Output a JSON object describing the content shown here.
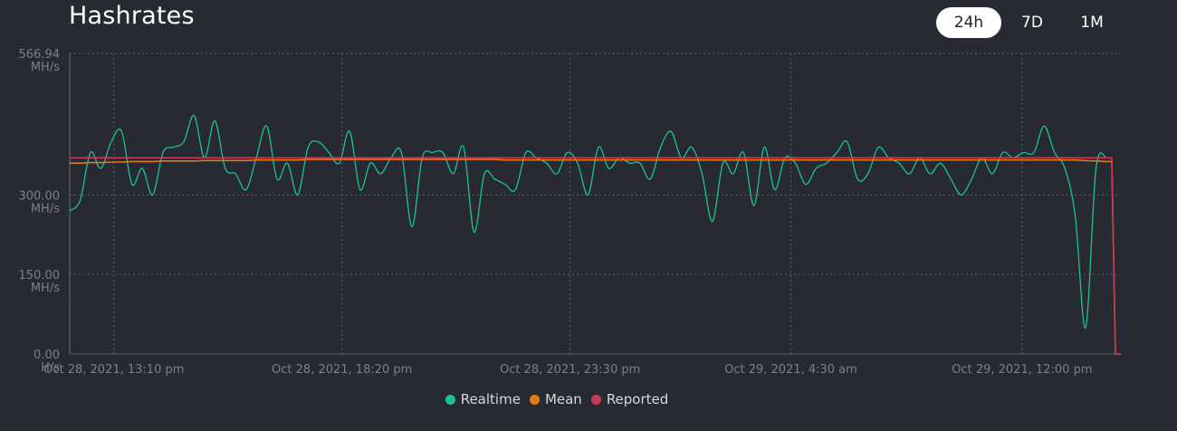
{
  "header": {
    "title": "Hashrates",
    "tabs": [
      {
        "label": "24h",
        "active": true
      },
      {
        "label": "7D",
        "active": false
      },
      {
        "label": "1M",
        "active": false
      }
    ]
  },
  "chart_data": {
    "type": "line",
    "title": "Hashrates",
    "grid": true,
    "legend_position": "bottom",
    "ylim": [
      0,
      566.94
    ],
    "y_ticks": [
      {
        "value": 566.94,
        "label": "566.94",
        "unit": "MH/s"
      },
      {
        "value": 300,
        "label": "300.00",
        "unit": "MH/s"
      },
      {
        "value": 150,
        "label": "150.00",
        "unit": "MH/s"
      },
      {
        "value": 0,
        "label": "0.00",
        "unit": "H/s"
      }
    ],
    "xlim": [
      0,
      1
    ],
    "x_ticks": [
      {
        "pos": 0.042,
        "label": "Oct 28, 2021, 13:10 pm"
      },
      {
        "pos": 0.259,
        "label": "Oct 28, 2021, 18:20 pm"
      },
      {
        "pos": 0.476,
        "label": "Oct 28, 2021, 23:30 pm"
      },
      {
        "pos": 0.686,
        "label": "Oct 29, 2021, 4:30 am"
      },
      {
        "pos": 0.906,
        "label": "Oct 29, 2021, 12:00 pm"
      }
    ],
    "series": [
      {
        "name": "Realtime",
        "color": "#1dbf96",
        "values": [
          270,
          290,
          380,
          350,
          400,
          420,
          320,
          350,
          300,
          380,
          390,
          400,
          450,
          370,
          440,
          350,
          340,
          310,
          370,
          430,
          330,
          360,
          300,
          390,
          400,
          380,
          360,
          420,
          310,
          360,
          340,
          370,
          380,
          240,
          370,
          380,
          380,
          340,
          390,
          230,
          340,
          330,
          320,
          310,
          380,
          370,
          360,
          340,
          380,
          360,
          300,
          390,
          350,
          370,
          360,
          360,
          330,
          390,
          420,
          370,
          390,
          340,
          250,
          360,
          340,
          380,
          280,
          390,
          310,
          370,
          360,
          320,
          350,
          360,
          380,
          400,
          330,
          340,
          390,
          370,
          360,
          340,
          370,
          340,
          360,
          330,
          300,
          330,
          370,
          340,
          380,
          370,
          380,
          380,
          430,
          380,
          350,
          260,
          50,
          350,
          370
        ]
      },
      {
        "name": "Mean",
        "color": "#e07b12",
        "values": [
          360,
          360,
          361,
          361,
          362,
          362,
          363,
          363,
          363,
          364,
          364,
          364,
          364,
          365,
          365,
          365,
          365,
          365,
          366,
          366,
          366,
          366,
          366,
          367,
          367,
          367,
          367,
          367,
          367,
          367,
          367,
          367,
          367,
          367,
          367,
          367,
          367,
          367,
          367,
          367,
          367,
          367,
          366,
          366,
          366,
          366,
          366,
          366,
          366,
          366,
          366,
          366,
          366,
          366,
          366,
          366,
          366,
          366,
          366,
          366,
          366,
          366,
          366,
          366,
          366,
          366,
          366,
          366,
          366,
          366,
          366,
          366,
          366,
          366,
          366,
          366,
          366,
          366,
          366,
          366,
          366,
          366,
          366,
          366,
          366,
          366,
          366,
          366,
          366,
          366,
          366,
          366,
          366,
          366,
          366,
          366,
          366,
          366,
          365,
          364,
          363
        ]
      },
      {
        "name": "Reported",
        "color": "#c9395a",
        "values": [
          370,
          370,
          370,
          370,
          370,
          370,
          370,
          370,
          370,
          370,
          370,
          370,
          370,
          370,
          370,
          370,
          370,
          370,
          370,
          370,
          370,
          370,
          370,
          370,
          370,
          370,
          370,
          370,
          370,
          370,
          370,
          370,
          370,
          370,
          370,
          370,
          370,
          370,
          370,
          370,
          370,
          370,
          370,
          370,
          370,
          370,
          370,
          370,
          370,
          370,
          370,
          370,
          370,
          370,
          370,
          370,
          370,
          370,
          370,
          370,
          370,
          370,
          370,
          370,
          370,
          370,
          370,
          370,
          370,
          370,
          370,
          370,
          370,
          370,
          370,
          370,
          370,
          370,
          370,
          370,
          370,
          370,
          370,
          370,
          370,
          370,
          370,
          370,
          370,
          370,
          370,
          370,
          370,
          370,
          370,
          370,
          370,
          370,
          370,
          370,
          370
        ]
      }
    ],
    "tail": [
      {
        "series": "Reported",
        "values": [
          370,
          0,
          0
        ]
      },
      {
        "series": "Mean",
        "values": [
          363,
          0,
          0
        ]
      }
    ]
  }
}
